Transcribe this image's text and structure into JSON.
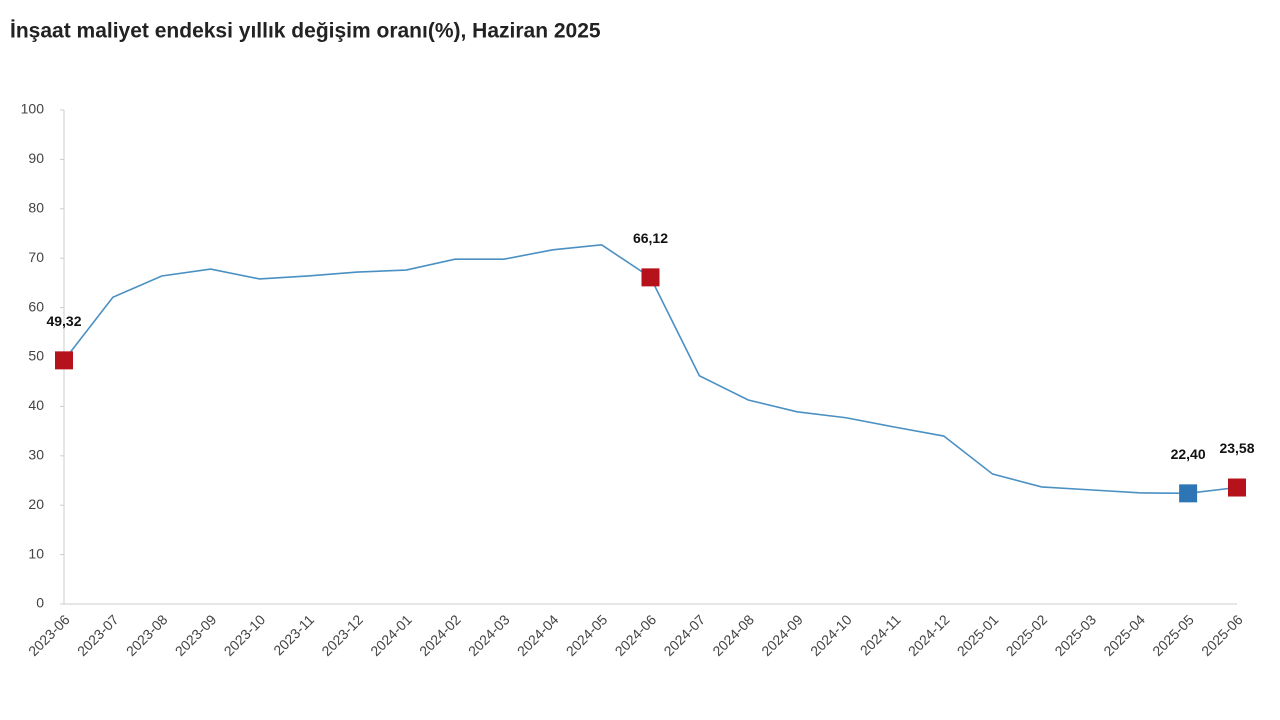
{
  "chart_data": {
    "type": "line",
    "title": "İnşaat maliyet endeksi yıllık değişim oranı(%), Haziran 2025",
    "categories": [
      "2023-06",
      "2023-07",
      "2023-08",
      "2023-09",
      "2023-10",
      "2023-11",
      "2023-12",
      "2024-01",
      "2024-02",
      "2024-03",
      "2024-04",
      "2024-05",
      "2024-06",
      "2024-07",
      "2024-08",
      "2024-09",
      "2024-10",
      "2024-11",
      "2024-12",
      "2025-01",
      "2025-02",
      "2025-03",
      "2025-04",
      "2025-05",
      "2025-06"
    ],
    "values": [
      49.32,
      62.1,
      66.4,
      67.8,
      65.8,
      66.4,
      67.2,
      67.6,
      69.8,
      69.8,
      71.7,
      72.7,
      66.12,
      46.2,
      41.3,
      38.9,
      37.7,
      35.8,
      34.0,
      26.3,
      23.7,
      23.1,
      22.5,
      22.4,
      23.58
    ],
    "value_labels": [
      "49,32",
      null,
      null,
      null,
      null,
      null,
      null,
      null,
      null,
      null,
      null,
      null,
      "66,12",
      null,
      null,
      null,
      null,
      null,
      null,
      null,
      null,
      null,
      null,
      "22,40",
      "23,58"
    ],
    "marker_colors": [
      "#b5121b",
      null,
      null,
      null,
      null,
      null,
      null,
      null,
      null,
      null,
      null,
      null,
      "#b5121b",
      null,
      null,
      null,
      null,
      null,
      null,
      null,
      null,
      null,
      null,
      "#2e75b6",
      "#b5121b"
    ],
    "color": "#4a90c2",
    "ylim": [
      0,
      100
    ],
    "yticks": [
      0,
      10,
      20,
      30,
      40,
      50,
      60,
      70,
      80,
      90,
      100
    ]
  }
}
